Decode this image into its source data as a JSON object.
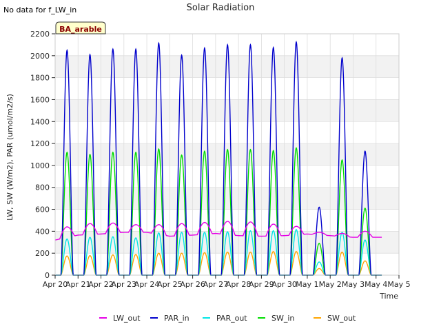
{
  "header": {
    "note": "No data for f_LW_in",
    "badge": "BA_arable"
  },
  "chart_data": {
    "type": "line",
    "title": "Solar Radiation",
    "xlabel": "Time",
    "ylabel": "LW, SW (W/m2), PAR (umol/m2/s)",
    "xlim": [
      0,
      15
    ],
    "ylim": [
      0,
      2200
    ],
    "yticks": [
      0,
      200,
      400,
      600,
      800,
      1000,
      1200,
      1400,
      1600,
      1800,
      2000,
      2200
    ],
    "xticks": [
      {
        "value": 0,
        "label": "Apr 20"
      },
      {
        "value": 1,
        "label": "Apr 21"
      },
      {
        "value": 2,
        "label": "Apr 22"
      },
      {
        "value": 3,
        "label": "Apr 23"
      },
      {
        "value": 4,
        "label": "Apr 24"
      },
      {
        "value": 5,
        "label": "Apr 25"
      },
      {
        "value": 6,
        "label": "Apr 26"
      },
      {
        "value": 7,
        "label": "Apr 27"
      },
      {
        "value": 8,
        "label": "Apr 28"
      },
      {
        "value": 9,
        "label": "Apr 29"
      },
      {
        "value": 10,
        "label": "Apr 30"
      },
      {
        "value": 11,
        "label": "May 1"
      },
      {
        "value": 12,
        "label": "May 2"
      },
      {
        "value": 13,
        "label": "May 3"
      },
      {
        "value": 14,
        "label": "May 4"
      },
      {
        "value": 15,
        "label": "May 5"
      }
    ],
    "grid": true,
    "legend_position": "bottom",
    "day_start": 0.25,
    "day_end": 0.79,
    "series": [
      {
        "name": "LW_out",
        "color": "#e600e6",
        "kind": "lw",
        "peaks": [
          440,
          470,
          475,
          460,
          460,
          470,
          480,
          490,
          485,
          465,
          445,
          390,
          380,
          400
        ],
        "nights": [
          320,
          365,
          375,
          390,
          390,
          355,
          365,
          380,
          360,
          355,
          360,
          375,
          360,
          345,
          345
        ]
      },
      {
        "name": "PAR_in",
        "color": "#0000cc",
        "kind": "solar",
        "peaks": [
          2050,
          2010,
          2060,
          2060,
          2115,
          2005,
          2070,
          2100,
          2100,
          2075,
          2125,
          620,
          1980,
          1130
        ]
      },
      {
        "name": "PAR_out",
        "color": "#00e6e6",
        "kind": "solar",
        "peaks": [
          330,
          345,
          350,
          340,
          385,
          390,
          390,
          395,
          405,
          405,
          415,
          120,
          390,
          320
        ]
      },
      {
        "name": "SW_in",
        "color": "#00dd00",
        "kind": "solar",
        "peaks": [
          1120,
          1100,
          1120,
          1120,
          1150,
          1095,
          1130,
          1145,
          1145,
          1135,
          1160,
          290,
          1050,
          610
        ]
      },
      {
        "name": "SW_out",
        "color": "#ffa500",
        "kind": "solar",
        "peaks": [
          175,
          178,
          185,
          188,
          200,
          200,
          205,
          210,
          210,
          215,
          215,
          60,
          210,
          130
        ]
      }
    ]
  }
}
